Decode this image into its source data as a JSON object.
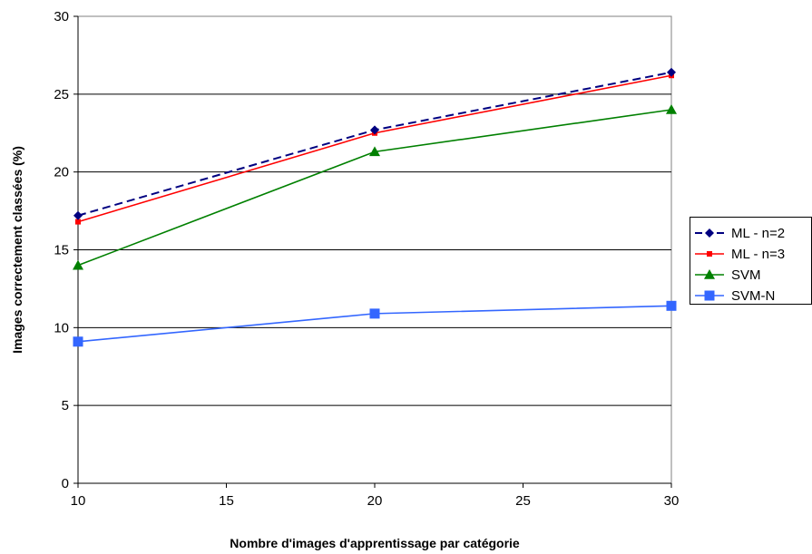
{
  "chart_data": {
    "type": "line",
    "title": "",
    "xlabel": "Nombre d'images d'apprentissage par catégorie",
    "ylabel": "Images correctement classées (%)",
    "xlim": [
      10,
      30
    ],
    "ylim": [
      0,
      30
    ],
    "x_ticks": [
      10,
      15,
      20,
      25,
      30
    ],
    "y_ticks": [
      0,
      5,
      10,
      15,
      20,
      25,
      30
    ],
    "grid": "horizontal",
    "legend_position": "right",
    "x": [
      10,
      20,
      30
    ],
    "series": [
      {
        "name": "ML - n=2",
        "values": [
          17.2,
          22.7,
          26.4
        ],
        "color": "#000080",
        "marker": "diamond",
        "dash": "dashed"
      },
      {
        "name": "ML - n=3",
        "values": [
          16.8,
          22.5,
          26.2
        ],
        "color": "#ff0000",
        "marker": "square-small",
        "dash": "solid"
      },
      {
        "name": "SVM",
        "values": [
          14.0,
          21.3,
          24.0
        ],
        "color": "#008000",
        "marker": "triangle",
        "dash": "solid"
      },
      {
        "name": "SVM-N",
        "values": [
          9.1,
          10.9,
          11.4
        ],
        "color": "#3366ff",
        "marker": "square",
        "dash": "solid"
      }
    ]
  }
}
